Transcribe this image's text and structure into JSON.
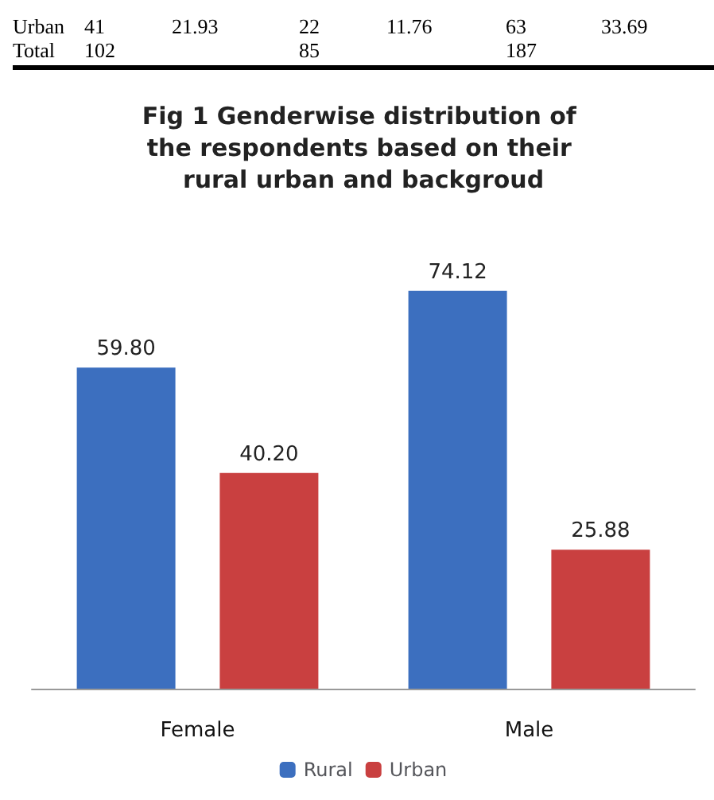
{
  "chart_data": {
    "type": "bar",
    "title": "Fig 1 Genderwise distribution of the respondents based on their rural urban and backgroud",
    "categories": [
      "Female",
      "Male"
    ],
    "series": [
      {
        "name": "Rural",
        "color": "#3c6fbf",
        "values": [
          59.8,
          74.12
        ],
        "value_labels": [
          "59.80",
          "74.12"
        ]
      },
      {
        "name": "Urban",
        "color": "#c94040",
        "values": [
          40.2,
          25.88
        ],
        "value_labels": [
          "40.20",
          "25.88"
        ]
      }
    ],
    "legend": "bottom",
    "annotations": [
      "Urban 41 21.93 22 11.76 63 33.69",
      "Total 102 85 187"
    ]
  }
}
